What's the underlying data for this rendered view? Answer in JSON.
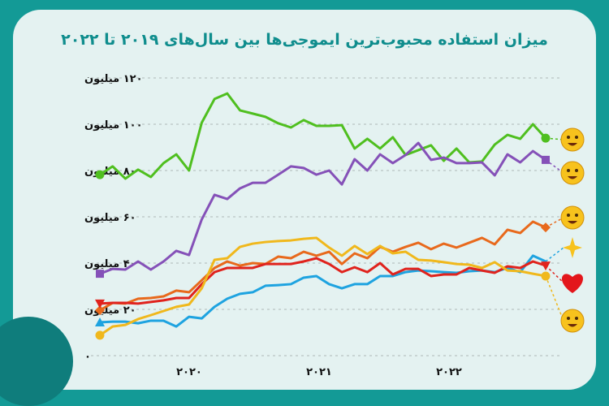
{
  "title": "میزان استفاده محبوب‌ترین ایموجی‌ها بین سال‌های ۲۰۱۹ تا ۲۰۲۲",
  "chart_data": {
    "type": "line",
    "title": "میزان استفاده محبوب‌ترین ایموجی‌ها بین سال‌های ۲۰۱۹ تا ۲۰۲۲",
    "xlabel": "",
    "ylabel": "",
    "ylim": [
      0,
      120
    ],
    "xlim": [
      2019.0,
      2023.0
    ],
    "grid": true,
    "x_start": 2019.0,
    "x_step": 0.1,
    "y_ticks": [
      0,
      20,
      40,
      60,
      80,
      100,
      120
    ],
    "y_tick_labels": [
      "۰",
      "۲۰ میلیون",
      "۴۰ میلیون",
      "۶۰ میلیون",
      "۸۰ میلیون",
      "۱۰۰ میلیون",
      "۱۲۰ میلیون"
    ],
    "x_ticks": [
      2020,
      2021,
      2022
    ],
    "x_tick_labels": [
      "۲۰۲۰",
      "۲۰۲۱",
      "۲۰۲۲"
    ],
    "series": [
      {
        "name": "face-with-tears-of-joy",
        "color": "#4fbf1f",
        "marker": "circle",
        "values": [
          78.2,
          81.8,
          76.5,
          80.4,
          77.2,
          83.2,
          87,
          80,
          100.7,
          110.9,
          113.3,
          106,
          104.6,
          103.2,
          100.4,
          98.6,
          101.8,
          99.3,
          99.3,
          99.6,
          89.5,
          93.7,
          89.5,
          94.4,
          86.7,
          88.8,
          90.9,
          84.2,
          89.5,
          83.5,
          83.9,
          91.2,
          95.4,
          93.7,
          100,
          94
        ]
      },
      {
        "name": "loudly-crying-face",
        "color": "#8551b8",
        "marker": "square",
        "values": [
          35.4,
          37.5,
          37.2,
          40.7,
          37.2,
          40.7,
          45.3,
          43.5,
          58.9,
          69.5,
          67.7,
          72.3,
          74.7,
          74.7,
          78.2,
          81.8,
          81.1,
          78.2,
          80,
          74,
          84.9,
          80,
          87,
          83.2,
          86.7,
          91.9,
          84.6,
          85.6,
          83.2,
          83.2,
          83.5,
          77.9,
          87,
          83.5,
          88.4,
          84.6
        ]
      },
      {
        "name": "rolling-on-floor-laughing",
        "color": "#e8691c",
        "marker": "diamond",
        "values": [
          19.6,
          22.8,
          22.5,
          24.6,
          24.9,
          25.6,
          28.1,
          27.4,
          32.6,
          37.9,
          40.7,
          38.9,
          40,
          39.6,
          42.8,
          42.1,
          44.9,
          43.2,
          44.9,
          39.6,
          44.2,
          42.1,
          47,
          44.9,
          47,
          48.8,
          46,
          48.4,
          46.7,
          48.8,
          50.9,
          48.1,
          54.4,
          53,
          57.9,
          55.4
        ]
      },
      {
        "name": "sparkles",
        "color": "#1ea3e0",
        "marker": "triangle-up",
        "values": [
          14.4,
          14.7,
          14.7,
          14,
          15.1,
          15.1,
          12.6,
          16.8,
          16.1,
          21.1,
          24.6,
          26.7,
          27.4,
          30.2,
          30.5,
          30.9,
          33.7,
          34.4,
          30.9,
          29.1,
          30.9,
          30.9,
          34.4,
          34.4,
          36.1,
          36.8,
          36.5,
          36.1,
          35.8,
          36.5,
          36.8,
          36.1,
          37.9,
          36.1,
          43.2,
          40.7
        ]
      },
      {
        "name": "red-heart",
        "color": "#e0231d",
        "marker": "triangle-down",
        "values": [
          22.5,
          22.8,
          22.8,
          22.5,
          23.2,
          23.9,
          24.9,
          24.9,
          30.9,
          36.1,
          37.9,
          37.9,
          37.9,
          39.6,
          39.6,
          39.6,
          40.7,
          42.1,
          39.6,
          36.1,
          38.2,
          36.1,
          40,
          35.1,
          37.5,
          37.5,
          34.4,
          35.1,
          35.1,
          37.9,
          36.8,
          35.8,
          38.6,
          37.9,
          40.7,
          38.9
        ]
      },
      {
        "name": "pleading-face",
        "color": "#f0b81c",
        "marker": "circle",
        "values": [
          8.8,
          12.6,
          13.3,
          15.8,
          17.5,
          19.3,
          21.1,
          22.1,
          29.1,
          41.4,
          42.1,
          47,
          48.4,
          49.1,
          49.5,
          49.8,
          50.5,
          50.9,
          46.7,
          43.2,
          47.4,
          43.9,
          47.4,
          44.2,
          44.9,
          41.4,
          41.1,
          40.4,
          39.6,
          39.3,
          37.9,
          40.4,
          36.8,
          36.5,
          35.4,
          34.4
        ]
      }
    ],
    "legend": {
      "placement": "right",
      "icons": [
        "face-with-tears-of-joy-icon",
        "loudly-crying-face-icon",
        "rolling-on-floor-laughing-icon",
        "sparkles-icon",
        "red-heart-icon",
        "pleading-face-icon"
      ]
    }
  }
}
